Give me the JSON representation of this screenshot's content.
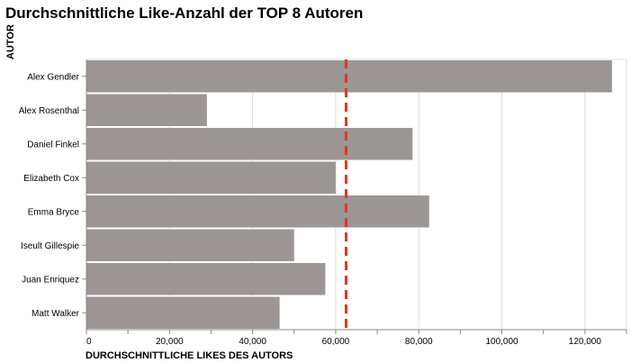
{
  "chart_data": {
    "type": "bar",
    "orientation": "horizontal",
    "title": "Durchschnittliche Like-Anzahl der TOP 8 Autoren",
    "ylabel": "AUTOR",
    "xlabel": "DURCHSCHNITTLICHE LIKES DES AUTORS",
    "categories": [
      "Alex Gendler",
      "Alex Rosenthal",
      "Daniel Finkel",
      "Elizabeth Cox",
      "Emma Bryce",
      "Iseult Gillespie",
      "Juan Enriquez",
      "Matt Walker"
    ],
    "values": [
      126500,
      29000,
      78500,
      60000,
      82500,
      50000,
      57500,
      46500
    ],
    "xlim": [
      0,
      130000
    ],
    "xticks": [
      0,
      20000,
      40000,
      60000,
      80000,
      100000,
      120000
    ],
    "xtick_labels": [
      "0",
      "20,000",
      "40,000",
      "60,000",
      "80,000",
      "100,000",
      "120,000"
    ],
    "reference_line": {
      "value": 62500,
      "style": "dashed",
      "color": "#e8351f"
    },
    "bar_color": "#9c9695",
    "grid": true
  }
}
